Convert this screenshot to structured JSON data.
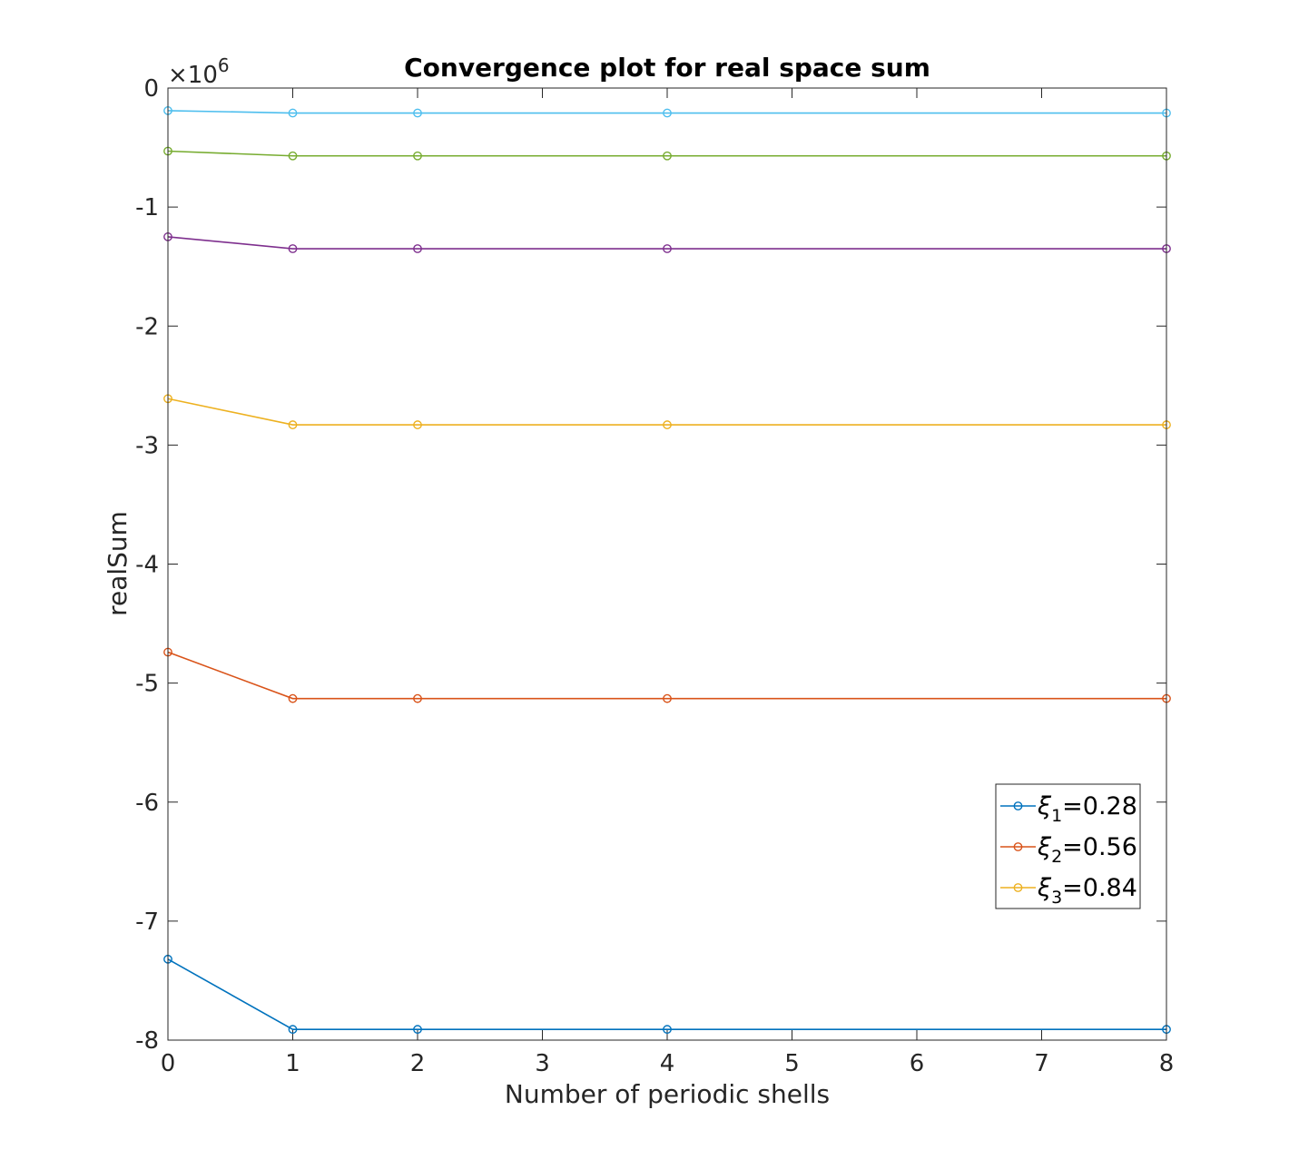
{
  "chart_data": {
    "type": "line",
    "title": "Convergence plot for real space sum",
    "xlabel": "Number of periodic shells",
    "ylabel": "realSum",
    "y_exponent_base": "×10",
    "y_exponent_power": "6",
    "xlim": [
      0,
      8
    ],
    "ylim": [
      -8,
      0
    ],
    "x_ticks": [
      0,
      1,
      2,
      3,
      4,
      5,
      6,
      7,
      8
    ],
    "y_ticks": [
      0,
      -1,
      -2,
      -3,
      -4,
      -5,
      -6,
      -7,
      -8
    ],
    "x_tick_labels": [
      "0",
      "1",
      "2",
      "3",
      "4",
      "5",
      "6",
      "7",
      "8"
    ],
    "y_tick_labels": [
      "0",
      "-1",
      "-2",
      "-3",
      "-4",
      "-5",
      "-6",
      "-7",
      "-8"
    ],
    "grid": false,
    "legend_position": "lower-right",
    "x": [
      0,
      1,
      2,
      4,
      8
    ],
    "series": [
      {
        "name": "ξ1=0.28",
        "legend_symbol": "ξ",
        "legend_sub": "1",
        "legend_value": "=0.28",
        "color": "#0072BD",
        "values": [
          -7.32,
          -7.91,
          -7.91,
          -7.91,
          -7.91
        ],
        "in_legend": true
      },
      {
        "name": "ξ2=0.56",
        "legend_symbol": "ξ",
        "legend_sub": "2",
        "legend_value": "=0.56",
        "color": "#D95319",
        "values": [
          -4.74,
          -5.13,
          -5.13,
          -5.13,
          -5.13
        ],
        "in_legend": true
      },
      {
        "name": "ξ3=0.84",
        "legend_symbol": "ξ",
        "legend_sub": "3",
        "legend_value": "=0.84",
        "color": "#EDB120",
        "values": [
          -2.61,
          -2.83,
          -2.83,
          -2.83,
          -2.83
        ],
        "in_legend": true
      },
      {
        "color": "#7E2F8E",
        "values": [
          -1.25,
          -1.35,
          -1.35,
          -1.35,
          -1.35
        ],
        "in_legend": false
      },
      {
        "color": "#77AC30",
        "values": [
          -0.53,
          -0.57,
          -0.57,
          -0.57,
          -0.57
        ],
        "in_legend": false
      },
      {
        "color": "#4DBEEE",
        "values": [
          -0.19,
          -0.21,
          -0.21,
          -0.21,
          -0.21
        ],
        "in_legend": false
      }
    ]
  }
}
